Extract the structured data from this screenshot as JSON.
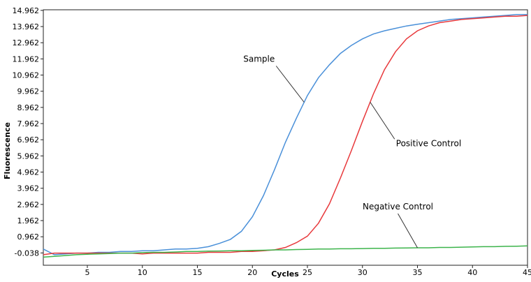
{
  "chart_data": {
    "type": "line",
    "title": "",
    "xlabel": "Cycles",
    "ylabel": "Fluorescence",
    "xlim": [
      1,
      45
    ],
    "ylim": [
      -0.8,
      15.0
    ],
    "x_ticks": [
      5,
      10,
      15,
      20,
      25,
      30,
      35,
      40,
      45
    ],
    "y_ticks": [
      -0.038,
      0.962,
      1.962,
      2.962,
      3.962,
      4.962,
      5.962,
      6.962,
      7.962,
      8.962,
      9.962,
      10.962,
      11.962,
      12.962,
      13.962,
      14.962
    ],
    "y_tick_labels": [
      "-0.038",
      "0.962",
      "1.962",
      "2.962",
      "3.962",
      "4.962",
      "5.962",
      "6.962",
      "7.962",
      "8.962",
      "9.962",
      "10.962",
      "11.962",
      "12.962",
      "13.962",
      "14.962"
    ],
    "grid": false,
    "x": [
      1,
      2,
      3,
      4,
      5,
      6,
      7,
      8,
      9,
      10,
      11,
      12,
      13,
      14,
      15,
      16,
      17,
      18,
      19,
      20,
      21,
      22,
      23,
      24,
      25,
      26,
      27,
      28,
      29,
      30,
      31,
      32,
      33,
      34,
      35,
      36,
      37,
      38,
      39,
      40,
      41,
      42,
      43,
      44,
      45
    ],
    "series": [
      {
        "name": "Sample",
        "color": "#4a90d9",
        "values": [
          0.2,
          -0.15,
          -0.1,
          -0.05,
          -0.05,
          0.0,
          0.0,
          0.05,
          0.05,
          0.1,
          0.1,
          0.15,
          0.2,
          0.2,
          0.25,
          0.35,
          0.55,
          0.8,
          1.3,
          2.2,
          3.5,
          5.1,
          6.8,
          8.3,
          9.7,
          10.8,
          11.6,
          12.3,
          12.8,
          13.2,
          13.5,
          13.7,
          13.85,
          14.0,
          14.1,
          14.2,
          14.3,
          14.4,
          14.45,
          14.5,
          14.55,
          14.6,
          14.65,
          14.7,
          14.7
        ]
      },
      {
        "name": "Positive Control",
        "color": "#e8393c",
        "values": [
          -0.15,
          -0.05,
          -0.05,
          -0.05,
          -0.05,
          -0.05,
          -0.05,
          -0.05,
          -0.05,
          -0.1,
          -0.05,
          -0.05,
          -0.05,
          -0.05,
          -0.05,
          0.0,
          0.0,
          0.0,
          0.05,
          0.05,
          0.1,
          0.15,
          0.3,
          0.6,
          1.0,
          1.8,
          3.0,
          4.6,
          6.3,
          8.1,
          9.8,
          11.3,
          12.4,
          13.2,
          13.7,
          14.0,
          14.2,
          14.3,
          14.4,
          14.45,
          14.5,
          14.55,
          14.6,
          14.6,
          14.65
        ]
      },
      {
        "name": "Negative Control",
        "color": "#3cb44b",
        "values": [
          -0.3,
          -0.25,
          -0.2,
          -0.15,
          -0.12,
          -0.1,
          -0.08,
          -0.05,
          -0.05,
          -0.02,
          0.0,
          0.0,
          0.02,
          0.05,
          0.05,
          0.07,
          0.08,
          0.1,
          0.1,
          0.12,
          0.13,
          0.15,
          0.15,
          0.17,
          0.18,
          0.2,
          0.2,
          0.22,
          0.22,
          0.23,
          0.25,
          0.25,
          0.26,
          0.27,
          0.28,
          0.28,
          0.3,
          0.3,
          0.32,
          0.33,
          0.35,
          0.35,
          0.37,
          0.38,
          0.4
        ]
      }
    ],
    "annotations": [
      {
        "text": "Sample",
        "series": 0,
        "at_x": 24.7
      },
      {
        "text": "Positive Control",
        "series": 1,
        "at_x": 30.7
      },
      {
        "text": "Negative Control",
        "series": 2,
        "at_x": 35.0
      }
    ]
  }
}
